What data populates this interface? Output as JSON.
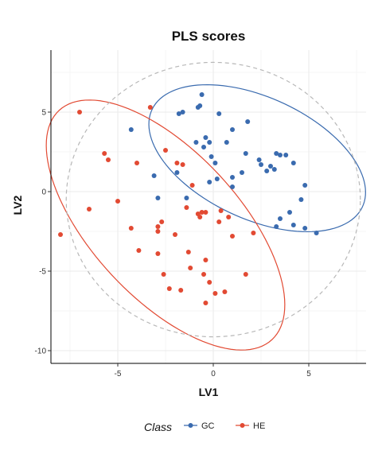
{
  "chart_data": {
    "type": "scatter",
    "title": "PLS scores",
    "xlabel": "LV1",
    "ylabel": "LV2",
    "xlim": [
      -8.5,
      8
    ],
    "ylim": [
      -10.8,
      8.9
    ],
    "xticks": [
      -5,
      0,
      5
    ],
    "yticks": [
      -10,
      -5,
      0,
      5
    ],
    "grid": true,
    "legend": {
      "title": "Class",
      "position": "bottom"
    },
    "series": [
      {
        "name": "GC",
        "color": "#3A6BAF",
        "points": [
          [
            -4.3,
            3.9
          ],
          [
            -1.6,
            5.0
          ],
          [
            -1.8,
            4.9
          ],
          [
            -0.8,
            5.3
          ],
          [
            -0.7,
            5.4
          ],
          [
            -0.6,
            6.1
          ],
          [
            0.3,
            4.9
          ],
          [
            1.8,
            4.4
          ],
          [
            1.0,
            3.9
          ],
          [
            -0.4,
            3.4
          ],
          [
            -0.2,
            3.1
          ],
          [
            -0.9,
            3.1
          ],
          [
            -0.5,
            2.8
          ],
          [
            0.7,
            3.1
          ],
          [
            1.7,
            2.4
          ],
          [
            2.4,
            2.0
          ],
          [
            3.3,
            2.4
          ],
          [
            3.8,
            2.3
          ],
          [
            3.5,
            2.3
          ],
          [
            2.5,
            1.7
          ],
          [
            3.0,
            1.6
          ],
          [
            2.8,
            1.3
          ],
          [
            3.2,
            1.4
          ],
          [
            4.2,
            1.8
          ],
          [
            1.5,
            1.2
          ],
          [
            -0.1,
            2.2
          ],
          [
            0.1,
            1.8
          ],
          [
            -1.9,
            1.2
          ],
          [
            -3.1,
            1.0
          ],
          [
            1.0,
            0.9
          ],
          [
            0.2,
            0.8
          ],
          [
            -0.2,
            0.6
          ],
          [
            1.0,
            0.3
          ],
          [
            4.8,
            0.4
          ],
          [
            4.6,
            -0.5
          ],
          [
            -1.4,
            -0.4
          ],
          [
            -2.9,
            -0.4
          ],
          [
            3.5,
            -1.7
          ],
          [
            4.0,
            -1.3
          ],
          [
            3.3,
            -2.2
          ],
          [
            4.2,
            -2.1
          ],
          [
            4.8,
            -2.3
          ],
          [
            5.4,
            -2.6
          ]
        ]
      },
      {
        "name": "HE",
        "color": "#E24A33",
        "points": [
          [
            -7.0,
            5.0
          ],
          [
            -3.3,
            5.3
          ],
          [
            -5.7,
            2.4
          ],
          [
            -5.5,
            2.0
          ],
          [
            -2.5,
            2.6
          ],
          [
            -4.0,
            1.8
          ],
          [
            -1.9,
            1.8
          ],
          [
            -1.6,
            1.7
          ],
          [
            -1.1,
            0.4
          ],
          [
            -5.0,
            -0.6
          ],
          [
            -6.5,
            -1.1
          ],
          [
            -1.4,
            -1.0
          ],
          [
            -0.8,
            -1.4
          ],
          [
            -0.6,
            -1.3
          ],
          [
            -0.4,
            -1.3
          ],
          [
            -0.7,
            -1.6
          ],
          [
            0.4,
            -1.2
          ],
          [
            0.8,
            -1.6
          ],
          [
            0.3,
            -1.9
          ],
          [
            -2.7,
            -1.9
          ],
          [
            -2.9,
            -2.2
          ],
          [
            -2.9,
            -2.5
          ],
          [
            -4.3,
            -2.3
          ],
          [
            -8.0,
            -2.7
          ],
          [
            -2.0,
            -2.7
          ],
          [
            1.0,
            -2.8
          ],
          [
            2.1,
            -2.6
          ],
          [
            -3.9,
            -3.7
          ],
          [
            -1.3,
            -3.8
          ],
          [
            -2.9,
            -3.9
          ],
          [
            -0.4,
            -4.3
          ],
          [
            -1.2,
            -4.8
          ],
          [
            -2.6,
            -5.2
          ],
          [
            -0.5,
            -5.2
          ],
          [
            1.7,
            -5.2
          ],
          [
            -0.2,
            -5.7
          ],
          [
            -2.3,
            -6.1
          ],
          [
            -1.7,
            -6.2
          ],
          [
            0.1,
            -6.4
          ],
          [
            0.6,
            -6.3
          ],
          [
            -0.4,
            -7.0
          ]
        ]
      }
    ],
    "ellipses": [
      {
        "series": "GC",
        "color": "#3A6BAF",
        "style": "solid",
        "center": [
          2.3,
          2.1
        ],
        "a": 6.33,
        "b": 3.67,
        "angle_deg": -33
      },
      {
        "series": "HE",
        "color": "#E24A33",
        "style": "solid",
        "center": [
          -2.5,
          -2.1
        ],
        "a": 9.15,
        "b": 4.13,
        "angle_deg": -55
      },
      {
        "series": "all",
        "color": "#B8B8B8",
        "style": "dashed",
        "center": [
          0.0,
          -0.5
        ],
        "a": 7.7,
        "b": 8.63,
        "angle_deg": 0
      }
    ]
  }
}
